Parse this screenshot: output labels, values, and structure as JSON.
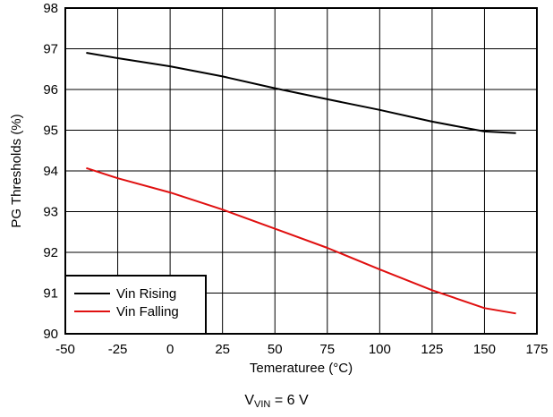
{
  "chart_data": {
    "type": "line",
    "xlabel": "Temeraturee (°C)",
    "ylabel": "PG Thresholds (%)",
    "xlim": [
      -50,
      175
    ],
    "ylim": [
      90,
      98
    ],
    "xticks": [
      "-50",
      "-25",
      "0",
      "25",
      "50",
      "75",
      "100",
      "125",
      "150",
      "175"
    ],
    "yticks": [
      "90",
      "91",
      "92",
      "93",
      "94",
      "95",
      "96",
      "97",
      "98"
    ],
    "grid": true,
    "legend_position": "bottom-left",
    "series": [
      {
        "name": "Vin Rising",
        "color": "#000000",
        "x": [
          -40,
          -25,
          0,
          25,
          50,
          75,
          100,
          125,
          150,
          165
        ],
        "y": [
          96.9,
          96.77,
          96.57,
          96.32,
          96.03,
          95.76,
          95.5,
          95.21,
          94.97,
          94.93
        ]
      },
      {
        "name": "Vin Falling",
        "color": "#e01010",
        "x": [
          -40,
          -25,
          0,
          25,
          50,
          75,
          100,
          125,
          150,
          165
        ],
        "y": [
          94.07,
          93.82,
          93.47,
          93.05,
          92.58,
          92.11,
          91.58,
          91.07,
          90.63,
          90.5
        ]
      }
    ]
  },
  "caption": {
    "prefix": "V",
    "subscript": "VIN",
    "suffix": " = 6 V"
  }
}
